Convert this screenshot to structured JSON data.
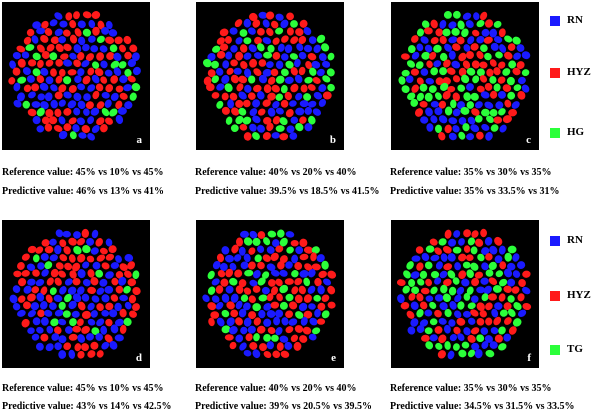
{
  "colors": {
    "RN": "#1a1aff",
    "HYZ": "#ff1a1a",
    "HG": "#2bff3a",
    "TG": "#2bff3a",
    "background": "#000000"
  },
  "legend_top": [
    {
      "label": "RN",
      "color": "#1a1aff"
    },
    {
      "label": "HYZ",
      "color": "#ff1a1a"
    },
    {
      "label": "HG",
      "color": "#2bff3a"
    }
  ],
  "legend_bottom": [
    {
      "label": "RN",
      "color": "#1a1aff"
    },
    {
      "label": "HYZ",
      "color": "#ff1a1a"
    },
    {
      "label": "TG",
      "color": "#2bff3a"
    }
  ],
  "panels": [
    {
      "letter": "a",
      "proportions": [
        0.45,
        0.1,
        0.45
      ],
      "reference": "Reference value: 45% vs 10% vs 45%",
      "predictive": "Predictive value: 46% vs 13% vs 41%"
    },
    {
      "letter": "b",
      "proportions": [
        0.4,
        0.2,
        0.4
      ],
      "reference": "Reference value: 40% vs 20% vs 40%",
      "predictive": "Predictive value: 39.5% vs 18.5% vs 41.5%"
    },
    {
      "letter": "c",
      "proportions": [
        0.35,
        0.3,
        0.35
      ],
      "reference": "Reference value: 35% vs 30% vs 35%",
      "predictive": "Predictive value: 35% vs 33.5% vs 31%"
    },
    {
      "letter": "d",
      "proportions": [
        0.45,
        0.1,
        0.45
      ],
      "reference": "Reference value: 45% vs 10% vs 45%",
      "predictive": "Predictive value: 43% vs 14% vs 42.5%"
    },
    {
      "letter": "e",
      "proportions": [
        0.4,
        0.2,
        0.4
      ],
      "reference": "Reference value: 40% vs 20% vs 40%",
      "predictive": "Predictive value: 39% vs 20.5% vs 39.5%"
    },
    {
      "letter": "f",
      "proportions": [
        0.35,
        0.3,
        0.35
      ],
      "reference": "Reference value: 35% vs 30% vs 35%",
      "predictive": "Predictive value: 34.5% vs 31.5% vs 33.5%"
    }
  ]
}
